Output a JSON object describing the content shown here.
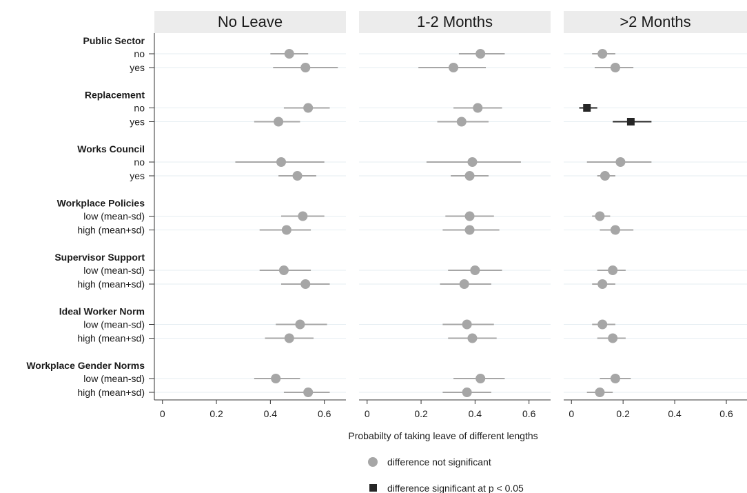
{
  "chart_data": {
    "type": "scatter",
    "xlabel": "Probabilty of taking leave of different lengths",
    "xlim": [
      -0.03,
      0.68
    ],
    "xticks": [
      0,
      0.2,
      0.4,
      0.6
    ],
    "xtick_labels": [
      "0",
      "0.2",
      "0.4",
      "0.6"
    ],
    "grid": true,
    "panels": [
      "No Leave",
      "1-2 Months",
      ">2 Months"
    ],
    "groups": [
      {
        "title": "Public Sector",
        "rows": [
          "no",
          "yes"
        ]
      },
      {
        "title": "Replacement",
        "rows": [
          "no",
          "yes"
        ]
      },
      {
        "title": "Works Council",
        "rows": [
          "no",
          "yes"
        ]
      },
      {
        "title": "Workplace Policies",
        "rows": [
          "low (mean-sd)",
          "high (mean+sd)"
        ]
      },
      {
        "title": "Supervisor Support",
        "rows": [
          "low (mean-sd)",
          "high (mean+sd)"
        ]
      },
      {
        "title": "Ideal Worker Norm",
        "rows": [
          "low (mean-sd)",
          "high (mean+sd)"
        ]
      },
      {
        "title": "Workplace Gender Norms",
        "rows": [
          "low (mean-sd)",
          "high (mean+sd)"
        ]
      }
    ],
    "series": [
      {
        "panel": "No Leave",
        "points": [
          {
            "est": 0.47,
            "lo": 0.4,
            "hi": 0.54,
            "sig": false
          },
          {
            "est": 0.53,
            "lo": 0.41,
            "hi": 0.65,
            "sig": false
          },
          {
            "est": 0.54,
            "lo": 0.45,
            "hi": 0.62,
            "sig": false
          },
          {
            "est": 0.43,
            "lo": 0.34,
            "hi": 0.51,
            "sig": false
          },
          {
            "est": 0.44,
            "lo": 0.27,
            "hi": 0.6,
            "sig": false
          },
          {
            "est": 0.5,
            "lo": 0.43,
            "hi": 0.57,
            "sig": false
          },
          {
            "est": 0.52,
            "lo": 0.44,
            "hi": 0.6,
            "sig": false
          },
          {
            "est": 0.46,
            "lo": 0.36,
            "hi": 0.55,
            "sig": false
          },
          {
            "est": 0.45,
            "lo": 0.36,
            "hi": 0.55,
            "sig": false
          },
          {
            "est": 0.53,
            "lo": 0.44,
            "hi": 0.62,
            "sig": false
          },
          {
            "est": 0.51,
            "lo": 0.42,
            "hi": 0.61,
            "sig": false
          },
          {
            "est": 0.47,
            "lo": 0.38,
            "hi": 0.56,
            "sig": false
          },
          {
            "est": 0.42,
            "lo": 0.34,
            "hi": 0.51,
            "sig": false
          },
          {
            "est": 0.54,
            "lo": 0.45,
            "hi": 0.62,
            "sig": false
          }
        ]
      },
      {
        "panel": "1-2 Months",
        "points": [
          {
            "est": 0.42,
            "lo": 0.34,
            "hi": 0.51,
            "sig": false
          },
          {
            "est": 0.32,
            "lo": 0.19,
            "hi": 0.44,
            "sig": false
          },
          {
            "est": 0.41,
            "lo": 0.32,
            "hi": 0.5,
            "sig": false
          },
          {
            "est": 0.35,
            "lo": 0.26,
            "hi": 0.45,
            "sig": false
          },
          {
            "est": 0.39,
            "lo": 0.22,
            "hi": 0.57,
            "sig": false
          },
          {
            "est": 0.38,
            "lo": 0.31,
            "hi": 0.45,
            "sig": false
          },
          {
            "est": 0.38,
            "lo": 0.29,
            "hi": 0.47,
            "sig": false
          },
          {
            "est": 0.38,
            "lo": 0.28,
            "hi": 0.49,
            "sig": false
          },
          {
            "est": 0.4,
            "lo": 0.3,
            "hi": 0.5,
            "sig": false
          },
          {
            "est": 0.36,
            "lo": 0.27,
            "hi": 0.46,
            "sig": false
          },
          {
            "est": 0.37,
            "lo": 0.28,
            "hi": 0.47,
            "sig": false
          },
          {
            "est": 0.39,
            "lo": 0.3,
            "hi": 0.48,
            "sig": false
          },
          {
            "est": 0.42,
            "lo": 0.32,
            "hi": 0.51,
            "sig": false
          },
          {
            "est": 0.37,
            "lo": 0.28,
            "hi": 0.46,
            "sig": false
          }
        ]
      },
      {
        "panel": ">2 Months",
        "points": [
          {
            "est": 0.12,
            "lo": 0.08,
            "hi": 0.17,
            "sig": false
          },
          {
            "est": 0.17,
            "lo": 0.09,
            "hi": 0.24,
            "sig": false
          },
          {
            "est": 0.06,
            "lo": 0.03,
            "hi": 0.1,
            "sig": true
          },
          {
            "est": 0.23,
            "lo": 0.16,
            "hi": 0.31,
            "sig": true
          },
          {
            "est": 0.19,
            "lo": 0.06,
            "hi": 0.31,
            "sig": false
          },
          {
            "est": 0.13,
            "lo": 0.1,
            "hi": 0.17,
            "sig": false
          },
          {
            "est": 0.11,
            "lo": 0.08,
            "hi": 0.15,
            "sig": false
          },
          {
            "est": 0.17,
            "lo": 0.11,
            "hi": 0.24,
            "sig": false
          },
          {
            "est": 0.16,
            "lo": 0.1,
            "hi": 0.21,
            "sig": false
          },
          {
            "est": 0.12,
            "lo": 0.08,
            "hi": 0.17,
            "sig": false
          },
          {
            "est": 0.12,
            "lo": 0.08,
            "hi": 0.17,
            "sig": false
          },
          {
            "est": 0.16,
            "lo": 0.1,
            "hi": 0.21,
            "sig": false
          },
          {
            "est": 0.17,
            "lo": 0.11,
            "hi": 0.23,
            "sig": false
          },
          {
            "est": 0.11,
            "lo": 0.06,
            "hi": 0.16,
            "sig": false
          }
        ]
      }
    ],
    "legend": [
      {
        "marker": "circle",
        "label": "difference not significant"
      },
      {
        "marker": "square",
        "label": "difference significant at p < 0.05"
      }
    ],
    "legend_position": "bottom",
    "colors": {
      "not_significant": "#a6a6a6",
      "significant": "#262626",
      "panel_header": "#ececec",
      "gridline": "#e6eef2",
      "axis": "#333333"
    }
  }
}
